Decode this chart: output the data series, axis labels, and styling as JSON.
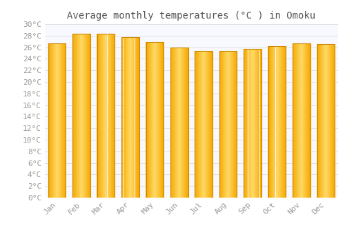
{
  "title": "Average monthly temperatures (°C ) in Omoku",
  "months": [
    "Jan",
    "Feb",
    "Mar",
    "Apr",
    "May",
    "Jun",
    "Jul",
    "Aug",
    "Sep",
    "Oct",
    "Nov",
    "Dec"
  ],
  "temperatures": [
    26.7,
    28.3,
    28.3,
    27.7,
    26.9,
    26.0,
    25.4,
    25.3,
    25.7,
    26.2,
    26.7,
    26.5
  ],
  "bar_color_center": "#FFD966",
  "bar_color_edge": "#F5A800",
  "bar_outline_color": "#CC8800",
  "background_color": "#FFFFFF",
  "plot_bg_color": "#F8F8FF",
  "grid_color": "#DDDDDD",
  "ylim": [
    0,
    30
  ],
  "ytick_step": 2,
  "title_fontsize": 10,
  "tick_fontsize": 8,
  "text_color": "#999999",
  "title_color": "#555555"
}
